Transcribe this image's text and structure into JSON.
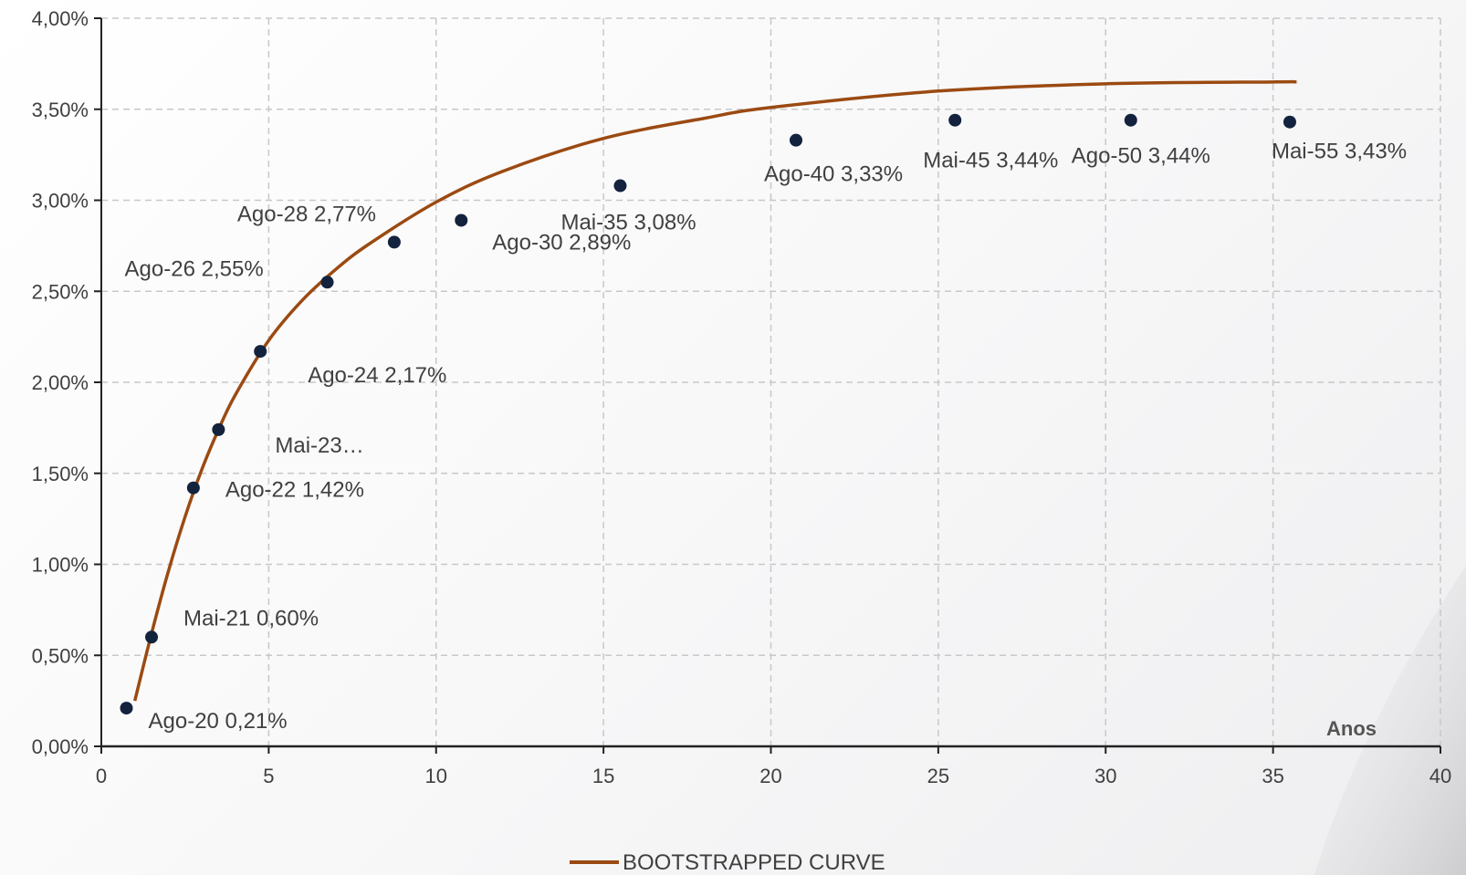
{
  "chart_data": {
    "type": "scatter",
    "title": "",
    "xlabel": "Anos",
    "ylabel": "",
    "xlim": [
      0,
      40
    ],
    "ylim": [
      0,
      4
    ],
    "x_ticks": [
      "0",
      "5",
      "10",
      "15",
      "20",
      "25",
      "30",
      "35",
      "40"
    ],
    "y_ticks": [
      "0,00%",
      "0,50%",
      "1,00%",
      "1,50%",
      "2,00%",
      "2,50%",
      "3,00%",
      "3,50%",
      "4,00%"
    ],
    "grid": true,
    "legend": {
      "position": "bottom-center",
      "entries": [
        "BOOTSTRAPPED CURVE"
      ]
    },
    "points": [
      {
        "x": 0.75,
        "y": 0.21,
        "label": "Ago-20 0,21%"
      },
      {
        "x": 1.5,
        "y": 0.6,
        "label": "Mai-21 0,60%"
      },
      {
        "x": 2.75,
        "y": 1.42,
        "label": "Ago-22 1,42%"
      },
      {
        "x": 3.5,
        "y": 1.74,
        "label": "Mai-23…"
      },
      {
        "x": 4.75,
        "y": 2.17,
        "label": "Ago-24 2,17%"
      },
      {
        "x": 6.75,
        "y": 2.55,
        "label": "Ago-26 2,55%"
      },
      {
        "x": 8.75,
        "y": 2.77,
        "label": "Ago-28 2,77%"
      },
      {
        "x": 10.75,
        "y": 2.89,
        "label": "Ago-30 2,89%"
      },
      {
        "x": 15.5,
        "y": 3.08,
        "label": "Mai-35 3,08%"
      },
      {
        "x": 20.75,
        "y": 3.33,
        "label": "Ago-40 3,33%"
      },
      {
        "x": 25.5,
        "y": 3.44,
        "label": "Mai-45 3,44%"
      },
      {
        "x": 30.75,
        "y": 3.44,
        "label": "Ago-50 3,44%"
      },
      {
        "x": 35.5,
        "y": 3.43,
        "label": "Mai-55 3,43%"
      }
    ],
    "series": [
      {
        "name": "BOOTSTRAPPED CURVE",
        "color": "#9b4a12",
        "x": [
          1,
          1.5,
          2,
          2.5,
          3,
          3.5,
          4,
          5,
          6,
          7,
          8,
          10,
          12,
          15,
          18,
          20,
          25,
          30,
          35,
          35.7
        ],
        "y": [
          0.25,
          0.62,
          0.96,
          1.26,
          1.52,
          1.74,
          1.93,
          2.23,
          2.45,
          2.62,
          2.76,
          2.99,
          3.16,
          3.34,
          3.45,
          3.51,
          3.6,
          3.64,
          3.65,
          3.65
        ]
      }
    ],
    "marker_color": "#13223d"
  }
}
